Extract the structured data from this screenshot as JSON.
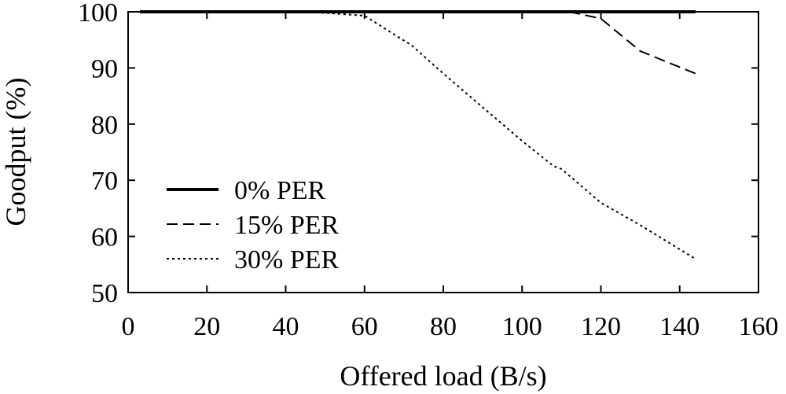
{
  "chart_data": {
    "type": "line",
    "title": "",
    "xlabel": "Offered load (B/s)",
    "ylabel": "Goodput (%)",
    "xlim": [
      0,
      160
    ],
    "ylim": [
      50,
      100
    ],
    "xticks": [
      0,
      20,
      40,
      60,
      80,
      100,
      120,
      140,
      160
    ],
    "yticks": [
      50,
      60,
      70,
      80,
      90,
      100
    ],
    "x_tick_labels": [
      "0",
      "20",
      "40",
      "60",
      "80",
      "100",
      "120",
      "140",
      "160"
    ],
    "y_tick_labels": [
      "50",
      "60",
      "70",
      "80",
      "90",
      "100"
    ],
    "grid": false,
    "legend_position": "center-left",
    "series": [
      {
        "name": "0% PER",
        "style": "solid",
        "x": [
          3,
          20,
          40,
          60,
          80,
          100,
          120,
          140,
          144
        ],
        "y": [
          100,
          100,
          100,
          100,
          100,
          100,
          100,
          100,
          100
        ]
      },
      {
        "name": "15% PER",
        "style": "dashed",
        "x": [
          3,
          40,
          60,
          80,
          100,
          112,
          120,
          130,
          144
        ],
        "y": [
          100,
          100,
          100,
          100,
          100,
          100,
          98.8,
          93,
          89
        ]
      },
      {
        "name": "30% PER",
        "style": "dotted",
        "x": [
          3,
          40,
          50,
          60,
          72,
          80,
          90,
          100,
          108,
          110,
          120,
          130,
          144
        ],
        "y": [
          100,
          100,
          99.8,
          99.3,
          94,
          89,
          83,
          77,
          72.5,
          72,
          66,
          62,
          56
        ]
      }
    ]
  }
}
